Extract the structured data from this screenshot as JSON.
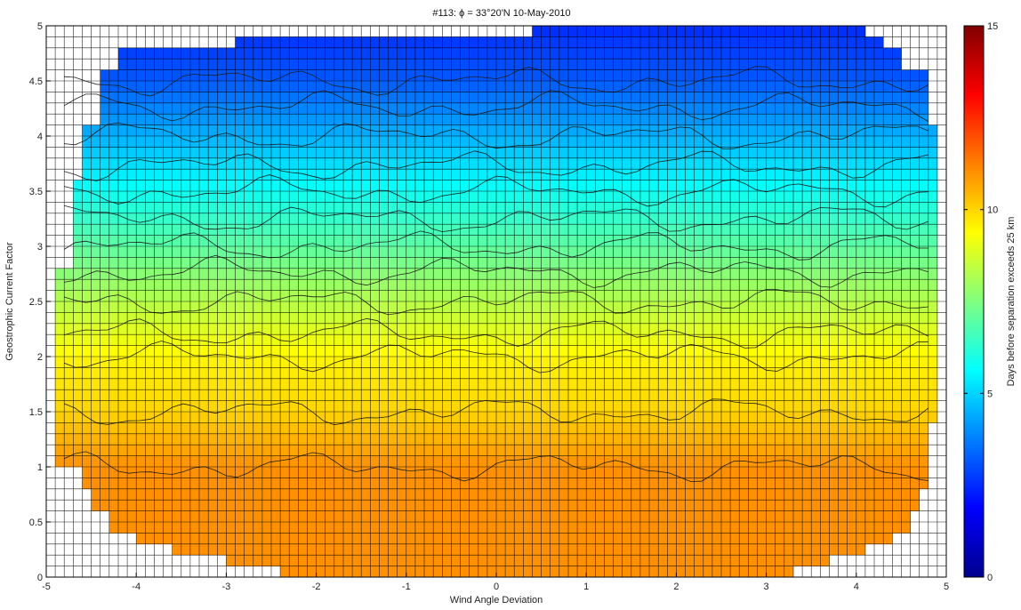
{
  "chart_data": {
    "type": "heatmap",
    "title": "#113: ϕ = 33°20'N 10-May-2010",
    "xlabel": "Wind Angle Deviation",
    "ylabel": "Geostrophic Current Factor",
    "colorbar_label": "Days before separation exceeds 25 km",
    "xlim": [
      -5,
      5
    ],
    "ylim": [
      0,
      5
    ],
    "clim": [
      0,
      15
    ],
    "colormap": "jet",
    "x_ticks": [
      "-5",
      "-4",
      "-3",
      "-2",
      "-1",
      "0",
      "1",
      "2",
      "3",
      "4",
      "5"
    ],
    "y_ticks": [
      "0",
      "0.5",
      "1",
      "1.5",
      "2",
      "2.5",
      "3",
      "3.5",
      "4",
      "4.5",
      "5"
    ],
    "colorbar_ticks": [
      "0",
      "5",
      "10",
      "15"
    ],
    "grid": true,
    "grid_step_x": 0.1,
    "grid_step_y": 0.1,
    "value_by_y": [
      [
        0.0,
        11.0
      ],
      [
        0.5,
        11.0
      ],
      [
        1.0,
        11.0
      ],
      [
        1.5,
        10.0
      ],
      [
        2.0,
        9.5
      ],
      [
        2.5,
        8.3
      ],
      [
        3.0,
        7.0
      ],
      [
        3.5,
        5.8
      ],
      [
        4.0,
        4.5
      ],
      [
        4.5,
        3.2
      ],
      [
        5.0,
        2.5
      ]
    ],
    "data_extent_rows": [
      [
        0.0,
        0.1,
        -2.4,
        3.3
      ],
      [
        0.1,
        0.2,
        -3.0,
        3.7
      ],
      [
        0.2,
        0.3,
        -3.6,
        4.1
      ],
      [
        0.3,
        0.4,
        -4.0,
        4.4
      ],
      [
        0.4,
        0.6,
        -4.3,
        4.6
      ],
      [
        0.6,
        0.8,
        -4.5,
        4.7
      ],
      [
        0.8,
        1.0,
        -4.6,
        4.8
      ],
      [
        1.0,
        1.4,
        -4.9,
        4.8
      ],
      [
        1.4,
        2.8,
        -4.9,
        4.9
      ],
      [
        2.8,
        3.6,
        -4.7,
        4.9
      ],
      [
        3.6,
        4.1,
        -4.6,
        4.9
      ],
      [
        4.1,
        4.6,
        -4.4,
        4.8
      ],
      [
        4.6,
        4.8,
        -4.2,
        4.5
      ],
      [
        4.8,
        4.9,
        -2.9,
        4.3
      ],
      [
        4.9,
        5.0,
        0.4,
        4.1
      ]
    ]
  }
}
